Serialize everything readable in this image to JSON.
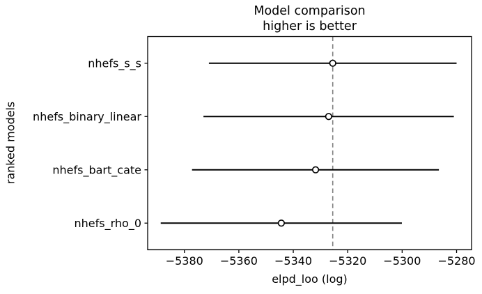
{
  "figure": {
    "title_line1": "Model comparison",
    "title_line2": "higher is better",
    "xlabel": "elpd_loo (log)",
    "ylabel": "ranked models"
  },
  "chart_data": {
    "type": "scatter",
    "subtype": "model-comparison-forest-plot",
    "title": "Model comparison\nhigher is better",
    "xlabel": "elpd_loo (log)",
    "ylabel": "ranked models",
    "xlim": [
      -5393.5,
      -5274.5
    ],
    "xticks": [
      -5380,
      -5360,
      -5340,
      -5320,
      -5300,
      -5280
    ],
    "grid": false,
    "legend": false,
    "reference_line": {
      "x": -5325.5,
      "style": "dashed",
      "color": "#808080"
    },
    "series": [
      {
        "name": "nhefs_s_s",
        "elpd_loo": -5325.5,
        "error_low": -5371.0,
        "error_high": -5280.0
      },
      {
        "name": "nhefs_binary_linear",
        "elpd_loo": -5327.0,
        "error_low": -5373.0,
        "error_high": -5281.0
      },
      {
        "name": "nhefs_bart_cate",
        "elpd_loo": -5331.8,
        "error_low": -5377.2,
        "error_high": -5286.5
      },
      {
        "name": "nhefs_rho_0",
        "elpd_loo": -5344.4,
        "error_low": -5388.7,
        "error_high": -5300.1
      }
    ],
    "marker": {
      "shape": "open-circle",
      "fill": "#ffffff",
      "edge": "#000000"
    },
    "colors": {
      "error_bar": "#000000",
      "spine": "#000000",
      "text": "#000000",
      "reference_line": "#808080",
      "background": "#ffffff"
    }
  }
}
